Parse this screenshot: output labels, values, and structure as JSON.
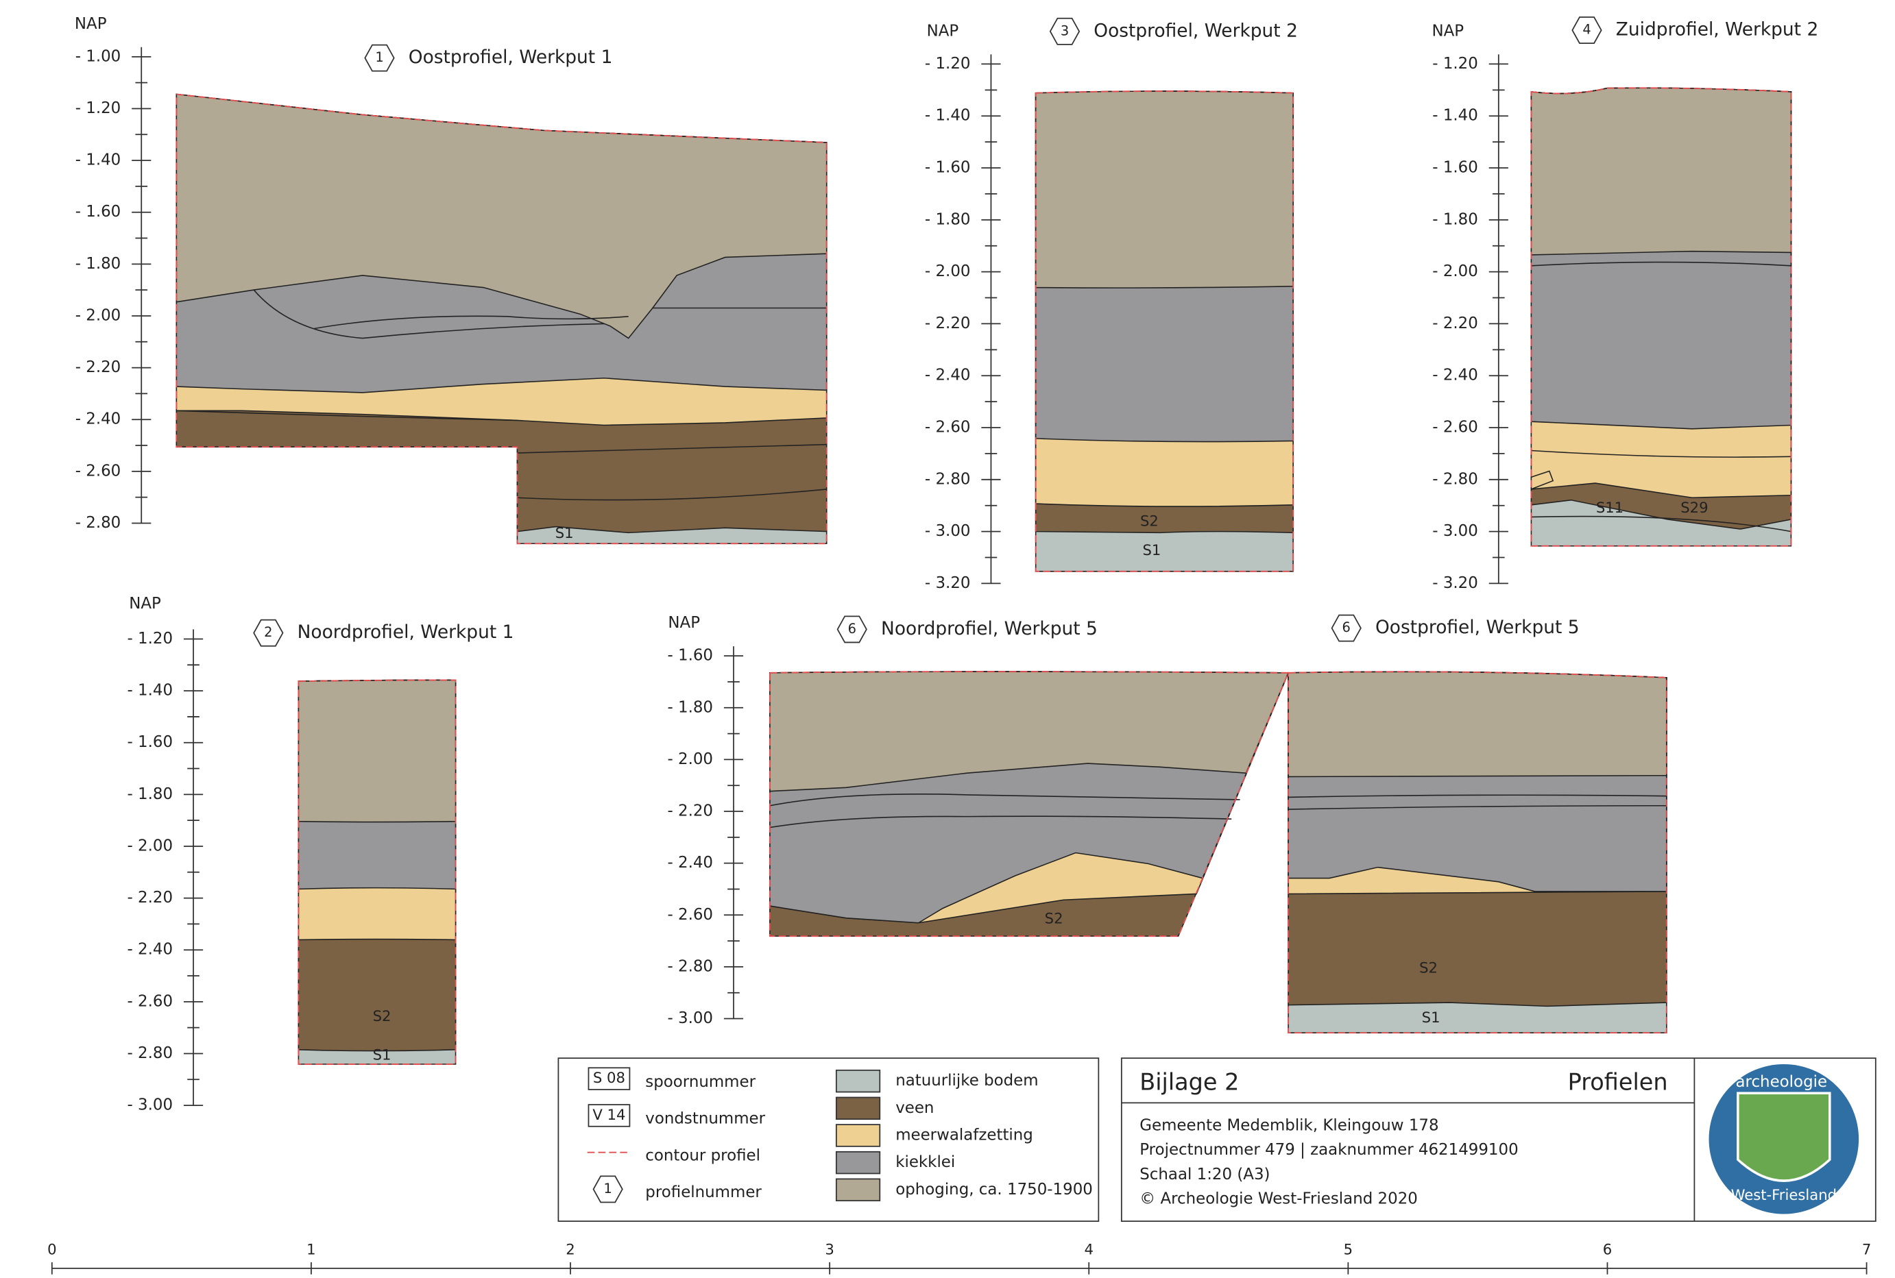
{
  "profiles": [
    {
      "number": "1",
      "title": "Oostprofiel, Werkput 1"
    },
    {
      "number": "3",
      "title": "Oostprofiel, Werkput 2"
    },
    {
      "number": "4",
      "title": "Zuidprofiel, Werkput 2"
    },
    {
      "number": "2",
      "title": "Noordprofiel, Werkput 1"
    },
    {
      "number": "6",
      "title": "Noordprofiel, Werkput 5"
    },
    {
      "number": "6",
      "title": "Oostprofiel, Werkput 5"
    }
  ],
  "scales": [
    {
      "axis_label": "NAP",
      "ticks": [
        "- 1.00",
        "- 1.20",
        "- 1.40",
        "- 1.60",
        "- 1.80",
        "- 2.00",
        "- 2.20",
        "- 2.40",
        "- 2.60",
        "- 2.80"
      ]
    },
    {
      "axis_label": "NAP",
      "ticks": [
        "- 1.20",
        "- 1.40",
        "- 1.60",
        "- 1.80",
        "- 2.00",
        "- 2.20",
        "- 2.40",
        "- 2.60",
        "- 2.80",
        "- 3.00",
        "- 3.20"
      ]
    },
    {
      "axis_label": "NAP",
      "ticks": [
        "- 1.20",
        "- 1.40",
        "- 1.60",
        "- 1.80",
        "- 2.00",
        "- 2.20",
        "- 2.40",
        "- 2.60",
        "- 2.80",
        "- 3.00",
        "- 3.20"
      ]
    },
    {
      "axis_label": "NAP",
      "ticks": [
        "- 1.20",
        "- 1.40",
        "- 1.60",
        "- 1.80",
        "- 2.00",
        "- 2.20",
        "- 2.40",
        "- 2.60",
        "- 2.80",
        "- 3.00"
      ]
    },
    {
      "axis_label": "NAP",
      "ticks": [
        "- 1.60",
        "- 1.80",
        "- 2.00",
        "- 2.20",
        "- 2.40",
        "- 2.60",
        "- 2.80",
        "- 3.00"
      ]
    }
  ],
  "layer_labels": [
    "S1",
    "S2",
    "S1",
    "S11",
    "S29",
    "S2",
    "S1",
    "S2",
    "S2",
    "S1"
  ],
  "legend": {
    "symbols": [
      {
        "key": "S 08",
        "label": "spoornummer"
      },
      {
        "key": "V 14",
        "label": "vondstnummer"
      },
      {
        "label": "contour profiel"
      },
      {
        "key": "1",
        "label": "profielnummer"
      }
    ],
    "layers": [
      {
        "label": "natuurlijke bodem",
        "color": "#b9c3bf"
      },
      {
        "label": "veen",
        "color": "#7c6244"
      },
      {
        "label": "meerwalafzetting",
        "color": "#eed093"
      },
      {
        "label": "kiekklei",
        "color": "#98989b"
      },
      {
        "label": "ophoging, ca. 1750-1900",
        "color": "#b1a993"
      }
    ]
  },
  "title_block": {
    "title": "Bijlage 2",
    "subtitle": "Profielen",
    "lines": [
      "Gemeente Medemblik, Kleingouw 178",
      "Projectnummer 479 | zaaknummer 4621499100",
      "Schaal 1:20 (A3)",
      "© Archeologie West-Friesland 2020"
    ]
  },
  "logo": {
    "top": "archeologie",
    "bottom": "West-Friesland"
  },
  "scale_bar": [
    "0",
    "1",
    "2",
    "3",
    "4",
    "5",
    "6",
    "7"
  ]
}
